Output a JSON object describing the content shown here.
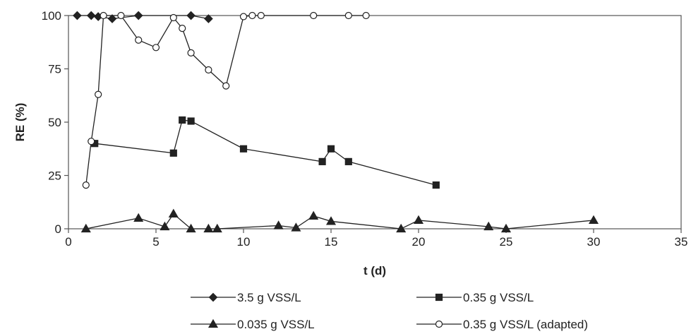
{
  "chart_data": {
    "type": "line",
    "xlabel": "t (d)",
    "ylabel": "RE (%)",
    "xlim": [
      0,
      35
    ],
    "ylim": [
      0,
      100
    ],
    "xticks": [
      0,
      5,
      10,
      15,
      20,
      25,
      30,
      35
    ],
    "yticks": [
      0,
      25,
      50,
      75,
      100
    ],
    "grid": false,
    "legend_position": "bottom",
    "series": [
      {
        "name": "3.5 g VSS/L",
        "marker": "diamond",
        "points": [
          [
            0.5,
            100
          ],
          [
            1.3,
            100
          ],
          [
            1.7,
            99.5
          ],
          [
            2.5,
            98.5
          ],
          [
            4,
            100
          ],
          [
            7,
            100
          ],
          [
            8,
            98.5
          ]
        ]
      },
      {
        "name": "0.35 g VSS/L",
        "marker": "square",
        "points": [
          [
            1.5,
            40
          ],
          [
            6,
            35.5
          ],
          [
            6.5,
            51
          ],
          [
            7,
            50.5
          ],
          [
            10,
            37.5
          ],
          [
            14.5,
            31.5
          ],
          [
            15,
            37.5
          ],
          [
            16,
            31.5
          ],
          [
            21,
            20.5
          ]
        ]
      },
      {
        "name": "0.035 g VSS/L",
        "marker": "triangle",
        "points": [
          [
            1,
            0
          ],
          [
            4,
            5
          ],
          [
            5.5,
            1
          ],
          [
            6,
            7
          ],
          [
            7,
            0
          ],
          [
            8,
            0
          ],
          [
            8.5,
            0
          ],
          [
            12,
            1.5
          ],
          [
            13,
            0.5
          ],
          [
            14,
            6
          ],
          [
            15,
            3.5
          ],
          [
            19,
            0
          ],
          [
            20,
            4
          ],
          [
            24,
            1
          ],
          [
            25,
            0
          ],
          [
            30,
            4
          ]
        ]
      },
      {
        "name": "0.35 g VSS/L (adapted)",
        "marker": "open-circle",
        "points": [
          [
            1,
            20.5
          ],
          [
            1.3,
            41
          ],
          [
            1.7,
            63
          ],
          [
            2,
            100
          ],
          [
            3,
            100
          ],
          [
            4,
            88.5
          ],
          [
            5,
            85
          ],
          [
            6,
            99
          ],
          [
            6.5,
            94
          ],
          [
            7,
            82.5
          ],
          [
            8,
            74.5
          ],
          [
            9,
            67
          ],
          [
            10,
            99.5
          ],
          [
            10.5,
            100
          ],
          [
            11,
            100
          ],
          [
            14,
            100
          ],
          [
            16,
            100
          ],
          [
            17,
            100
          ]
        ]
      }
    ]
  }
}
